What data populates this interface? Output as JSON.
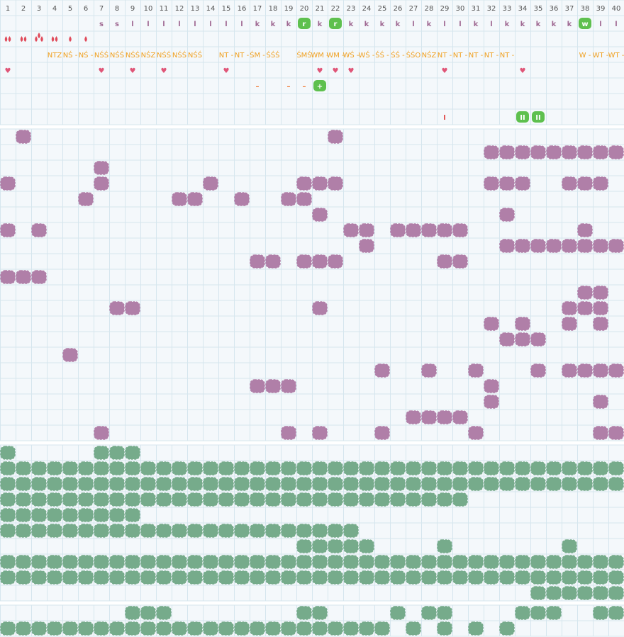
{
  "header": {
    "columns": [
      1,
      2,
      3,
      4,
      5,
      6,
      7,
      8,
      9,
      10,
      11,
      12,
      13,
      14,
      15,
      16,
      17,
      18,
      19,
      20,
      21,
      22,
      23,
      24,
      25,
      26,
      27,
      28,
      29,
      30,
      31,
      32,
      33,
      34,
      35,
      36,
      37,
      38,
      39,
      40
    ],
    "letters": [
      null,
      null,
      null,
      null,
      null,
      null,
      "s",
      "s",
      "l",
      "l",
      "l",
      "l",
      "l",
      "l",
      "l",
      "l",
      "k",
      "k",
      "k",
      {
        "text": "r",
        "badge": true
      },
      "k",
      {
        "text": "r",
        "badge": true
      },
      "k",
      "k",
      "k",
      "k",
      "l",
      "k",
      "l",
      "l",
      "k",
      "l",
      "k",
      "k",
      "k",
      "k",
      "k",
      {
        "text": "w",
        "badge": true
      },
      "l",
      "l"
    ],
    "drops": [
      2,
      2,
      3,
      2,
      1,
      1,
      null,
      null,
      null,
      null,
      null,
      null,
      null,
      null,
      null,
      null,
      null,
      null,
      null,
      null,
      null,
      null,
      null,
      null,
      null,
      null,
      null,
      null,
      null,
      null,
      null,
      null,
      null,
      null,
      null,
      null,
      null,
      null,
      null,
      null
    ],
    "codes": [
      null,
      null,
      null,
      "NTZ",
      "NŚ -",
      "NŚ -",
      "NŚŚ",
      "NŚŚ",
      "NŚŚ",
      "NŚZ",
      "NŚŚ",
      "NŚŚ",
      "NŚŚ",
      null,
      "NT -",
      "NT -",
      "ŚM -",
      "ŚŚŚ",
      null,
      "ŚMŚ",
      "WM -",
      "WM -",
      "WŚ -",
      "WŚ -",
      "ŚŚ -",
      "ŚŚ -",
      "ŚŚO",
      "NŚZ",
      "NT -",
      "NT -",
      "NT -",
      "NT -",
      "NT -",
      null,
      null,
      null,
      null,
      "W -",
      "WT -",
      "WT -"
    ],
    "hearts": [
      "♥",
      null,
      null,
      null,
      null,
      null,
      "♥",
      null,
      "♥",
      null,
      "♥",
      null,
      null,
      null,
      "♥",
      null,
      null,
      null,
      null,
      null,
      "♥",
      "♥",
      "♥",
      null,
      null,
      null,
      null,
      null,
      "♥",
      null,
      null,
      null,
      null,
      "♥",
      null,
      null,
      null,
      null,
      null,
      null
    ],
    "marks": [
      null,
      null,
      null,
      null,
      null,
      null,
      null,
      null,
      null,
      null,
      null,
      null,
      null,
      null,
      null,
      null,
      "–",
      null,
      "–",
      "–",
      {
        "text": "+",
        "badge": true
      },
      null,
      null,
      null,
      null,
      null,
      null,
      null,
      null,
      null,
      null,
      null,
      null,
      null,
      null,
      null,
      null,
      null,
      null,
      null
    ],
    "marks2": [
      null,
      null,
      null,
      null,
      null,
      null,
      null,
      null,
      null,
      null,
      null,
      null,
      null,
      null,
      null,
      null,
      null,
      null,
      null,
      null,
      null,
      null,
      null,
      null,
      null,
      null,
      null,
      null,
      "I",
      null,
      null,
      null,
      null,
      {
        "text": "II",
        "badge": true
      },
      {
        "text": "II",
        "badge": true
      },
      null,
      null,
      null,
      null,
      null
    ]
  },
  "purple": [
    [
      2,
      22
    ],
    [
      32,
      33,
      34,
      35,
      36,
      37,
      38,
      39,
      40
    ],
    [
      7
    ],
    [
      1,
      7,
      14,
      20,
      21,
      22,
      32,
      33,
      34,
      37,
      38,
      39
    ],
    [
      6,
      12,
      13,
      16,
      19,
      20
    ],
    [
      21,
      33
    ],
    [
      1,
      3,
      23,
      24,
      26,
      27,
      28,
      29,
      30,
      38
    ],
    [
      24,
      33,
      34,
      35,
      36,
      37,
      38,
      39,
      40
    ],
    [
      17,
      18,
      20,
      21,
      22,
      29,
      30
    ],
    [
      1,
      2,
      3
    ],
    [
      38,
      39
    ],
    [
      8,
      9,
      21,
      37,
      38,
      39
    ],
    [
      32,
      34,
      37,
      39
    ],
    [
      33,
      34,
      35
    ],
    [
      5
    ],
    [
      25,
      28,
      31,
      35,
      37,
      38,
      39,
      40
    ],
    [
      17,
      18,
      19,
      32
    ],
    [
      32,
      39
    ],
    [
      27,
      28,
      29,
      30
    ],
    [
      7,
      19,
      21,
      25,
      31,
      39,
      40
    ]
  ],
  "green": [
    [
      1,
      7,
      8,
      9
    ],
    [
      1,
      2,
      3,
      4,
      5,
      6,
      7,
      8,
      9,
      10,
      11,
      12,
      13,
      14,
      15,
      16,
      17,
      18,
      19,
      20,
      21,
      22,
      23,
      24,
      25,
      26,
      27,
      28,
      29,
      30,
      31,
      32,
      33,
      34,
      35,
      36,
      37,
      38,
      39,
      40
    ],
    [
      1,
      2,
      3,
      4,
      5,
      6,
      7,
      8,
      9,
      10,
      11,
      12,
      13,
      14,
      15,
      16,
      17,
      18,
      19,
      20,
      21,
      22,
      23,
      24,
      25,
      26,
      27,
      28,
      29,
      30,
      31,
      32,
      33,
      34,
      35,
      36,
      37,
      38,
      39,
      40
    ],
    [
      1,
      2,
      3,
      4,
      5,
      6,
      7,
      8,
      9,
      10,
      11,
      12,
      13,
      14,
      15,
      16,
      17,
      18,
      19,
      20,
      21,
      22,
      23,
      24,
      25,
      26,
      27,
      28,
      29,
      30
    ],
    [
      1,
      2,
      3,
      4,
      5,
      6,
      7,
      8,
      9
    ],
    [
      1,
      2,
      3,
      4,
      5,
      6,
      7,
      8,
      9,
      10,
      11,
      12,
      13,
      14,
      15,
      16,
      17,
      18,
      19,
      20,
      21,
      22,
      23
    ],
    [
      20,
      21,
      22,
      23,
      24,
      29,
      37
    ],
    [
      1,
      2,
      3,
      4,
      5,
      6,
      7,
      8,
      9,
      10,
      11,
      12,
      13,
      14,
      15,
      16,
      17,
      18,
      19,
      20,
      21,
      22,
      23,
      24,
      25,
      26,
      27,
      28,
      29,
      30,
      31,
      32,
      33,
      34,
      35,
      36,
      37,
      38,
      39,
      40
    ],
    [
      1,
      2,
      3,
      4,
      5,
      6,
      7,
      8,
      9,
      10,
      11,
      12,
      13,
      14,
      15,
      16,
      17,
      18,
      19,
      20,
      21,
      22,
      23,
      24,
      25,
      26,
      27,
      28,
      29,
      30,
      31,
      32,
      33,
      34,
      35,
      36,
      37,
      38,
      39,
      40
    ],
    [
      35,
      36,
      37,
      38,
      39,
      40
    ]
  ],
  "bottom": [
    [
      9,
      10,
      11,
      20,
      21,
      26,
      28,
      29,
      34,
      35,
      36,
      39,
      40
    ],
    [
      1,
      2,
      3,
      4,
      5,
      6,
      7,
      8,
      9,
      10,
      11,
      12,
      13,
      14,
      15,
      16,
      17,
      18,
      19,
      20,
      21,
      22,
      23,
      24,
      25,
      27,
      29,
      31,
      33
    ]
  ]
}
